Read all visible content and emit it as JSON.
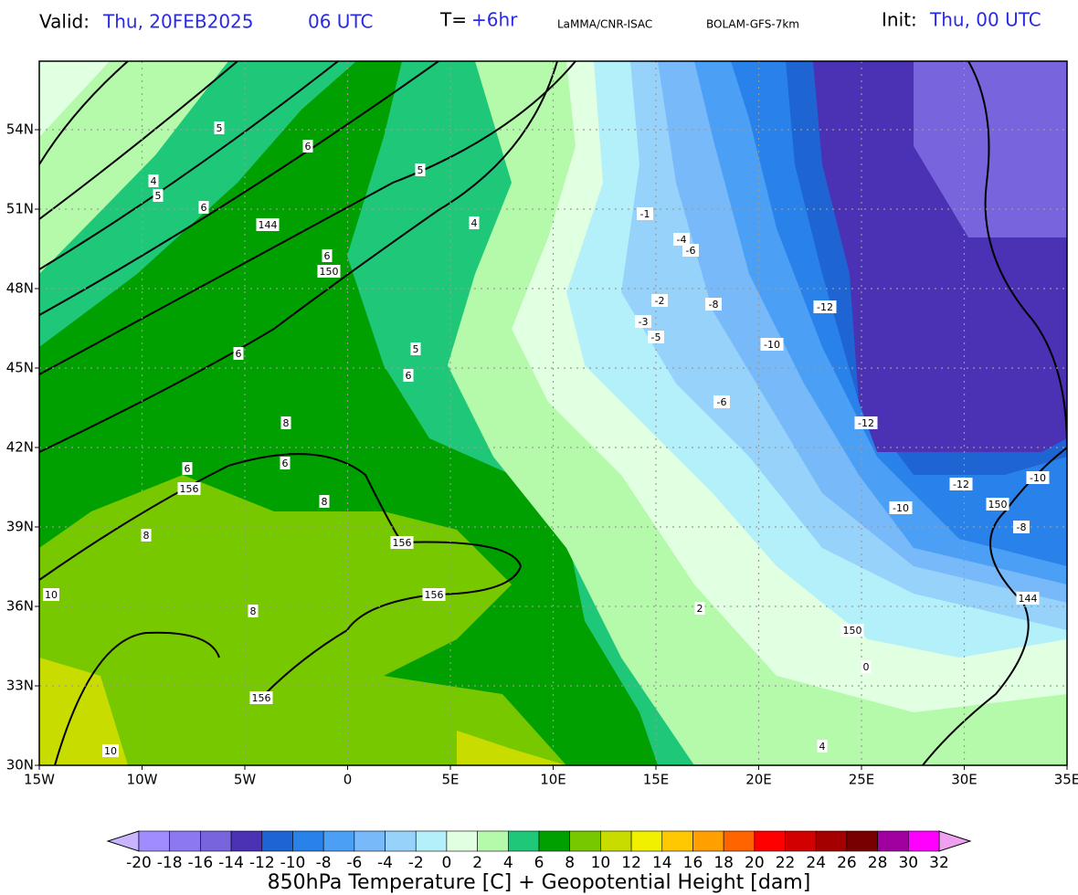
{
  "header": {
    "valid_label": "Valid:",
    "valid_date": "Thu, 20FEB2025",
    "valid_time": "06 UTC",
    "step_label": "T=",
    "step": "+6hr",
    "source": "LaMMA/CNR-ISAC",
    "model": "BOLAM-GFS-7km",
    "init_label": "Init:",
    "init": "Thu, 00 UTC"
  },
  "map": {
    "lon_labels": [
      "15W",
      "10W",
      "5W",
      "0",
      "5E",
      "10E",
      "15E",
      "20E",
      "25E",
      "30E",
      "35E"
    ],
    "lat_labels": [
      "30N",
      "33N",
      "36N",
      "39N",
      "42N",
      "45N",
      "48N",
      "51N",
      "54N"
    ],
    "contour_labels": [
      "5",
      "6",
      "4",
      "5",
      "5",
      "6",
      "144",
      "4",
      "6",
      "150",
      "-1",
      "-4",
      "-6",
      "-2",
      "-8",
      "-12",
      "-3",
      "-5",
      "-10",
      "6",
      "5",
      "6",
      "-6",
      "-12",
      "8",
      "6",
      "6",
      "156",
      "8",
      "-10",
      "-12",
      "-10",
      "150",
      "-8",
      "156",
      "8",
      "10",
      "156",
      "8",
      "144",
      "150",
      "156",
      "10",
      "4",
      "0",
      "2"
    ]
  },
  "colorbar": {
    "labels": [
      "-20",
      "-18",
      "-16",
      "-14",
      "-12",
      "-10",
      "-8",
      "-6",
      "-4",
      "-2",
      "0",
      "2",
      "4",
      "6",
      "8",
      "10",
      "12",
      "14",
      "16",
      "18",
      "20",
      "22",
      "24",
      "26",
      "28",
      "30",
      "32"
    ],
    "colors": [
      "#a08cff",
      "#8c78f0",
      "#7864dc",
      "#4b32b4",
      "#1e64d2",
      "#2882ea",
      "#4ba0f5",
      "#78b9fa",
      "#96d2fa",
      "#b4f0fa",
      "#e1ffe1",
      "#b4faaa",
      "#1ec878",
      "#00a000",
      "#78c800",
      "#c8dc00",
      "#f0f000",
      "#ffc800",
      "#ffa000",
      "#ff6400",
      "#ff0000",
      "#d20000",
      "#a50000",
      "#780000",
      "#a000a0",
      "#ff00ff"
    ],
    "under_color": "#c8b4ff",
    "over_color": "#f0a0f0",
    "caption": "850hPa Temperature [C] + Geopotential Height [dam]"
  }
}
